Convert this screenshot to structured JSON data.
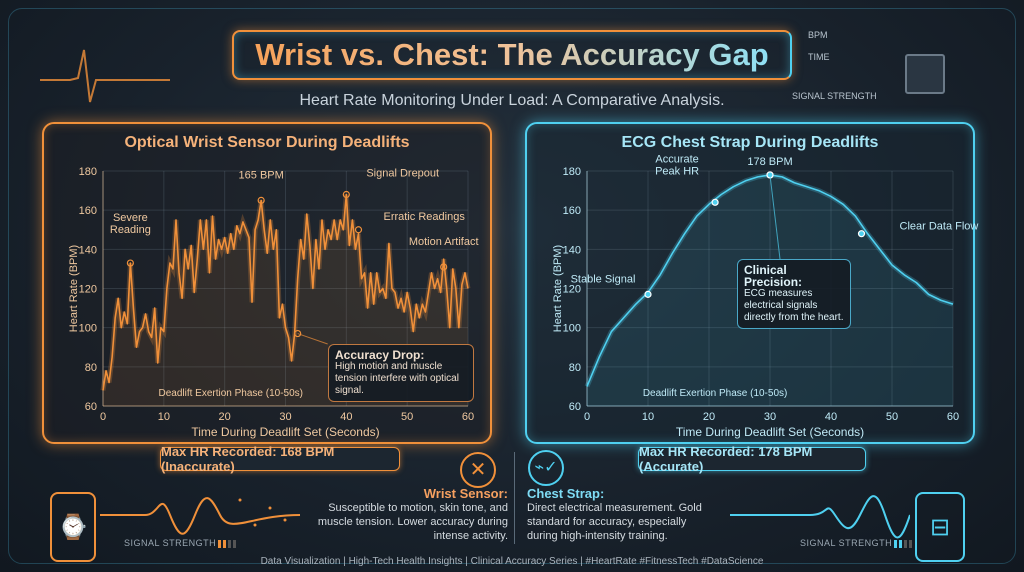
{
  "header": {
    "title": "Wrist vs. Chest: The Accuracy Gap",
    "subtitle": "Heart Rate Monitoring Under Load: A Comparative Analysis."
  },
  "hud": {
    "bpm": "BPM",
    "time": "TIME",
    "signal": "SIGNAL STRENGTH"
  },
  "colors": {
    "wrist": "#f0903a",
    "chest": "#4fd0f0",
    "background": "#1b2530"
  },
  "chart_data": [
    {
      "type": "line",
      "title": "Optical Wrist Sensor During Deadlifts",
      "xlabel": "Time During Deadlift Set (Seconds)",
      "ylabel": "Heart Rate (BPM)",
      "xlim": [
        0,
        60
      ],
      "ylim": [
        60,
        180
      ],
      "xticks": [
        0,
        10,
        20,
        30,
        40,
        50,
        60
      ],
      "yticks": [
        60,
        80,
        100,
        120,
        140,
        160,
        180
      ],
      "grid": true,
      "phase_label": "Deadlift Exertion Phase (10-50s)",
      "x": [
        0,
        0.5,
        1,
        1.5,
        2,
        2.5,
        3,
        3.5,
        4,
        4.5,
        5,
        5.5,
        6,
        6.5,
        7,
        7.5,
        8,
        8.5,
        9,
        9.5,
        10,
        10.5,
        11,
        11.5,
        12,
        12.5,
        13,
        13.5,
        14,
        14.5,
        15,
        15.5,
        16,
        16.5,
        17,
        17.5,
        18,
        18.5,
        19,
        19.5,
        20,
        20.5,
        21,
        21.5,
        22,
        22.5,
        23,
        23.5,
        24,
        24.5,
        25,
        25.5,
        26,
        26.5,
        27,
        27.5,
        28,
        28.5,
        29,
        29.5,
        30,
        30.5,
        31,
        31.5,
        32,
        32.5,
        33,
        33.5,
        34,
        34.5,
        35,
        35.5,
        36,
        36.5,
        37,
        37.5,
        38,
        38.5,
        39,
        39.5,
        40,
        40.5,
        41,
        41.5,
        42,
        42.5,
        43,
        43.5,
        44,
        44.5,
        45,
        45.5,
        46,
        46.5,
        47,
        47.5,
        48,
        48.5,
        49,
        49.5,
        50,
        50.5,
        51,
        51.5,
        52,
        52.5,
        53,
        53.5,
        54,
        54.5,
        55,
        55.5,
        56,
        56.5,
        57,
        57.5,
        58,
        58.5,
        59,
        59.5,
        60
      ],
      "y": [
        68,
        78,
        72,
        85,
        105,
        115,
        100,
        108,
        102,
        133,
        110,
        90,
        98,
        100,
        107,
        98,
        95,
        110,
        82,
        100,
        98,
        120,
        133,
        130,
        155,
        128,
        115,
        140,
        130,
        142,
        118,
        135,
        155,
        140,
        155,
        128,
        157,
        135,
        145,
        140,
        146,
        138,
        148,
        140,
        152,
        148,
        154,
        150,
        146,
        113,
        150,
        155,
        165,
        150,
        138,
        155,
        140,
        150,
        105,
        112,
        100,
        95,
        83,
        97,
        125,
        145,
        135,
        158,
        142,
        120,
        145,
        130,
        155,
        140,
        150,
        145,
        155,
        145,
        155,
        150,
        168,
        142,
        155,
        140,
        148,
        125,
        128,
        110,
        128,
        112,
        128,
        118,
        120,
        115,
        143,
        120,
        118,
        110,
        115,
        108,
        118,
        110,
        98,
        112,
        105,
        112,
        108,
        118,
        128,
        120,
        125,
        118,
        135,
        120,
        100,
        130,
        120,
        100,
        122,
        128,
        120
      ],
      "annotations": [
        {
          "label": "Severe Reading",
          "x": 4.5,
          "y": 133
        },
        {
          "label": "165 BPM",
          "x": 26,
          "y": 165
        },
        {
          "label": "Signal Drepout",
          "x": 40,
          "y": 168
        },
        {
          "label": "Erratic Readings",
          "x": 42,
          "y": 150
        },
        {
          "label": "Motion Artifact",
          "x": 56,
          "y": 131
        },
        {
          "label": "Accuracy Drop:",
          "text": "High motion and muscle tension interfere with optical signal.",
          "x": 32,
          "y": 97
        }
      ],
      "summary": "Max HR Recorded: 168 BPM (Inaccurate)"
    },
    {
      "type": "line",
      "title": "ECG Chest Strap During Deadlifts",
      "xlabel": "Time During Deadlift Set (Seconds)",
      "ylabel": "Heart Rate (BPM)",
      "xlim": [
        0,
        60
      ],
      "ylim": [
        60,
        180
      ],
      "xticks": [
        0,
        10,
        20,
        30,
        40,
        50,
        60
      ],
      "yticks": [
        60,
        80,
        100,
        120,
        140,
        160,
        180
      ],
      "grid": true,
      "phase_label": "Deadlift Exertion Phase (10-50s)",
      "x": [
        0,
        2,
        4,
        6,
        8,
        10,
        12,
        14,
        16,
        18,
        20,
        22,
        24,
        26,
        28,
        30,
        32,
        34,
        36,
        38,
        40,
        42,
        44,
        46,
        48,
        50,
        52,
        54,
        56,
        58,
        60
      ],
      "y": [
        70,
        85,
        98,
        105,
        112,
        118,
        127,
        138,
        148,
        157,
        163,
        168,
        172,
        175,
        177,
        178,
        177,
        174,
        172,
        170,
        167,
        163,
        157,
        148,
        140,
        132,
        127,
        123,
        117,
        114,
        112
      ],
      "annotations": [
        {
          "label": "Stable Signal",
          "x": 10,
          "y": 117
        },
        {
          "label": "Accurate Peak HR",
          "x": 21,
          "y": 164
        },
        {
          "label": "178 BPM",
          "x": 30,
          "y": 178
        },
        {
          "label": "Clear Data Flow",
          "x": 45,
          "y": 148
        },
        {
          "label": "Clinical Precision:",
          "text": "ECG measures electrical signals directly from the heart.",
          "x": 30,
          "y": 178
        }
      ],
      "summary": "Max HR Recorded: 178 BPM (Accurate)"
    }
  ],
  "wrist": {
    "heading": "Wrist Sensor:",
    "text": "Susceptible to motion, skin tone, and muscle tension. Lower accuracy during intense activity.",
    "signal_label": "SIGNAL STRENGTH",
    "icon": "x-circle-icon"
  },
  "chest": {
    "heading": "Chest Strap:",
    "text": "Direct electrical measurement. Gold standard for accuracy, especially during high-intensity training.",
    "signal_label": "SIGNAL STRENGTH",
    "icon": "heartbeat-check-icon"
  },
  "footer": "Data Visualization | High-Tech Health Insights | Clinical Accuracy Series | #HeartRate #FitnessTech #DataScience"
}
